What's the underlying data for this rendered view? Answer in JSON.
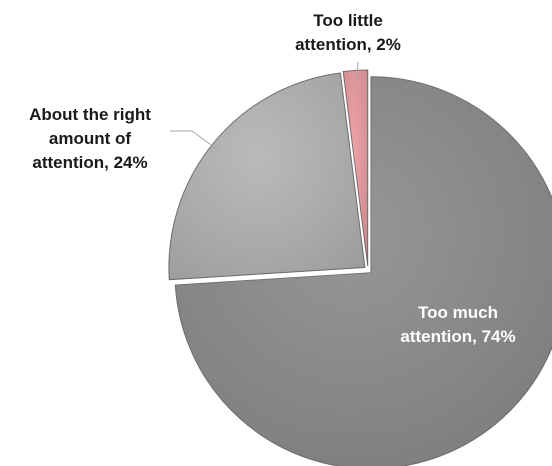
{
  "chart_data": {
    "type": "pie",
    "title": "",
    "start_angle_deg": 0,
    "direction": "clockwise",
    "slices": [
      {
        "label": "Too much attention, 74%",
        "label_lines": [
          "Too much",
          "attention, 74%"
        ],
        "value": 74,
        "color": "#8a8a8a",
        "label_color": "#ffffff"
      },
      {
        "label": "About the right amount of attention, 24%",
        "label_lines": [
          "About the right",
          "amount of",
          "attention, 24%"
        ],
        "value": 24,
        "color": "#b2b2b2",
        "label_color": "#1a1a1a"
      },
      {
        "label": "Too little attention, 2%",
        "label_lines": [
          "Too little",
          "attention, 2%"
        ],
        "value": 2,
        "color": "#e8989c",
        "label_color": "#1a1a1a"
      }
    ],
    "legend": "none"
  }
}
